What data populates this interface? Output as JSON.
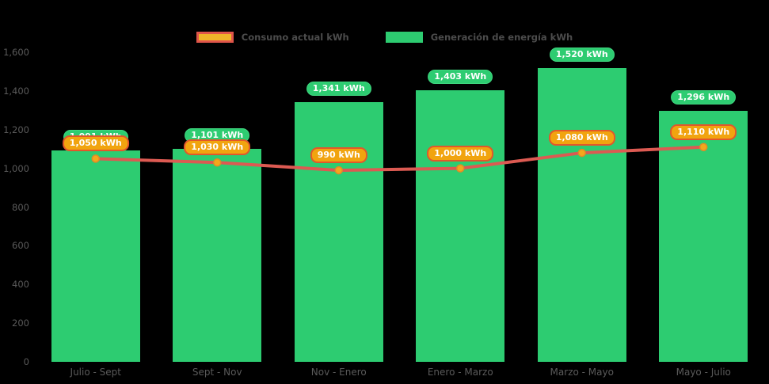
{
  "colors": {
    "background": "#000000",
    "bar": "#2dcc71",
    "line": "#dc5a52",
    "marker_fill": "#f3a81c",
    "marker_border": "#e08a28",
    "generation_label_bg": "#2dcc71",
    "consumption_label_bg": "#f1a40f",
    "consumption_label_border": "#e2572b",
    "axis_text": "#5a5a5a",
    "legend_text": "#4c4c4c",
    "pill_text": "#ffffff",
    "legend_consumption_swatch_fill": "#f0b429",
    "legend_consumption_swatch_border": "#e0554a"
  },
  "legend": {
    "items": [
      {
        "label": "Consumo actual kWh",
        "swatch": "line"
      },
      {
        "label": "Generación de energía kWh",
        "swatch": "bar"
      }
    ]
  },
  "chart_data": {
    "type": "bar+line",
    "title": "",
    "xlabel": "",
    "ylabel": "",
    "categories": [
      "Julio - Sept",
      "Sept - Nov",
      "Nov - Enero",
      "Enero - Marzo",
      "Marzo - Mayo",
      "Mayo - Julio"
    ],
    "series": [
      {
        "name": "Generación de energía kWh",
        "type": "bar",
        "values": [
          1091,
          1101,
          1341,
          1403,
          1520,
          1296
        ],
        "labels": [
          "1.091 kWh",
          "1,101 kWh",
          "1,341 kWh",
          "1,403 kWh",
          "1,520 kWh",
          "1,296 kWh"
        ]
      },
      {
        "name": "Consumo actual kWh",
        "type": "line",
        "values": [
          1050,
          1030,
          990,
          1000,
          1080,
          1110
        ],
        "labels": [
          "1,050 kWh",
          "1,030 kWh",
          "990 kWh",
          "1,000 kWh",
          "1,080 kWh",
          "1,110 kWh"
        ]
      }
    ],
    "ylim": [
      0,
      1600
    ],
    "yticks": [
      {
        "value": 1600,
        "label": "1,600"
      },
      {
        "value": 1400,
        "label": "1,400"
      },
      {
        "value": 1200,
        "label": "1,200"
      },
      {
        "value": 1000,
        "label": "1,000"
      },
      {
        "value": 800,
        "label": "800"
      },
      {
        "value": 600,
        "label": "600"
      },
      {
        "value": 400,
        "label": "400"
      },
      {
        "value": 200,
        "label": "200"
      },
      {
        "value": 0,
        "label": "0"
      }
    ],
    "grid": false,
    "legend_position": "top-center"
  }
}
